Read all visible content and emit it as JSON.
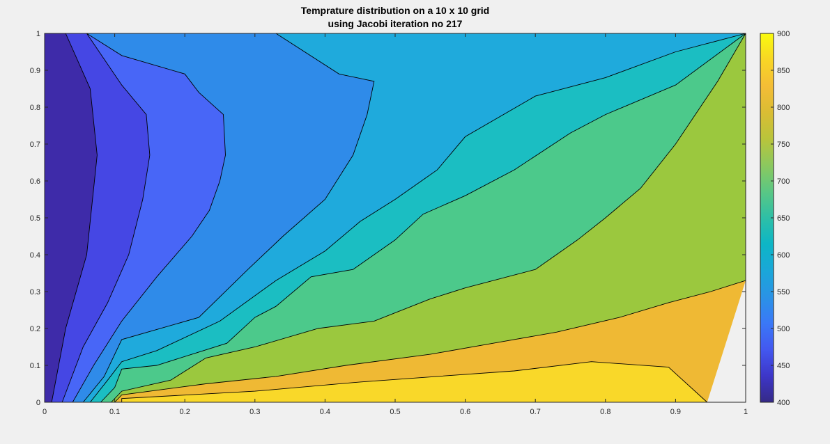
{
  "figure": {
    "title_line1": "Temprature distribution on a 10 x 10  grid",
    "title_line2": "using Jacobi iteration no 217"
  },
  "chart_data": {
    "type": "contourf",
    "title": "Temprature distribution on a 10 x 10  grid\nusing Jacobi iteration no 217",
    "xlabel": "",
    "ylabel": "",
    "xlim": [
      0,
      1
    ],
    "ylim": [
      0,
      1
    ],
    "xticks": [
      0,
      0.1,
      0.2,
      0.3,
      0.4,
      0.5,
      0.6,
      0.7,
      0.8,
      0.9,
      1
    ],
    "xtick_labels": [
      "0",
      "0.1",
      "0.2",
      "0.3",
      "0.4",
      "0.5",
      "0.6",
      "0.7",
      "0.8",
      "0.9",
      "1"
    ],
    "yticks": [
      0,
      0.1,
      0.2,
      0.3,
      0.4,
      0.5,
      0.6,
      0.7,
      0.8,
      0.9,
      1
    ],
    "ytick_labels": [
      "0",
      "0.1",
      "0.2",
      "0.3",
      "0.4",
      "0.5",
      "0.6",
      "0.7",
      "0.8",
      "0.9",
      "1"
    ],
    "grid": false,
    "colormap": "parula",
    "colorbar": {
      "range": [
        400,
        900
      ],
      "ticks": [
        400,
        450,
        500,
        550,
        600,
        650,
        700,
        750,
        800,
        850,
        900
      ],
      "tick_labels": [
        "400",
        "450",
        "500",
        "550",
        "600",
        "650",
        "700",
        "750",
        "800",
        "850",
        "900"
      ],
      "location": "right"
    },
    "levels": [
      400,
      450,
      500,
      550,
      600,
      650,
      700,
      750,
      800,
      850
    ],
    "level_colors": [
      "#3e2ba9",
      "#4547e4",
      "#4866f7",
      "#2f8be9",
      "#1faadc",
      "#1bbec2",
      "#4cc98b",
      "#9bc83e",
      "#efb934",
      "#f9d829"
    ],
    "contour_lines": [
      {
        "level": 450,
        "points": [
          [
            0.01,
            0
          ],
          [
            0.03,
            0.2
          ],
          [
            0.06,
            0.4
          ],
          [
            0.075,
            0.67
          ],
          [
            0.065,
            0.85
          ],
          [
            0.03,
            1
          ]
        ]
      },
      {
        "level": 500,
        "points": [
          [
            0.025,
            0
          ],
          [
            0.055,
            0.15
          ],
          [
            0.09,
            0.27
          ],
          [
            0.12,
            0.4
          ],
          [
            0.14,
            0.55
          ],
          [
            0.15,
            0.67
          ],
          [
            0.145,
            0.78
          ],
          [
            0.11,
            0.86
          ],
          [
            0.06,
            1
          ]
        ]
      },
      {
        "level": 550,
        "points": [
          [
            0.04,
            0
          ],
          [
            0.07,
            0.1
          ],
          [
            0.11,
            0.22
          ],
          [
            0.16,
            0.34
          ],
          [
            0.21,
            0.45
          ],
          [
            0.235,
            0.52
          ],
          [
            0.25,
            0.6
          ],
          [
            0.258,
            0.67
          ],
          [
            0.255,
            0.78
          ],
          [
            0.22,
            0.84
          ],
          [
            0.2,
            0.89
          ],
          [
            0.11,
            0.94
          ],
          [
            0.06,
            1
          ]
        ]
      },
      {
        "level": 600,
        "points": [
          [
            0.055,
            0
          ],
          [
            0.085,
            0.07
          ],
          [
            0.11,
            0.17
          ],
          [
            0.22,
            0.23
          ],
          [
            0.29,
            0.36
          ],
          [
            0.34,
            0.45
          ],
          [
            0.4,
            0.55
          ],
          [
            0.44,
            0.67
          ],
          [
            0.46,
            0.78
          ],
          [
            0.47,
            0.87
          ],
          [
            0.42,
            0.89
          ],
          [
            0.33,
            1
          ]
        ]
      },
      {
        "level": 650,
        "points": [
          [
            0.065,
            0
          ],
          [
            0.09,
            0.06
          ],
          [
            0.11,
            0.11
          ],
          [
            0.16,
            0.14
          ],
          [
            0.25,
            0.22
          ],
          [
            0.33,
            0.33
          ],
          [
            0.4,
            0.41
          ],
          [
            0.45,
            0.49
          ],
          [
            0.5,
            0.55
          ],
          [
            0.56,
            0.63
          ],
          [
            0.6,
            0.72
          ],
          [
            0.7,
            0.83
          ],
          [
            0.8,
            0.88
          ],
          [
            0.9,
            0.95
          ],
          [
            1,
            1
          ]
        ]
      },
      {
        "level": 700,
        "points": [
          [
            0.08,
            0
          ],
          [
            0.1,
            0.04
          ],
          [
            0.11,
            0.09
          ],
          [
            0.16,
            0.1
          ],
          [
            0.26,
            0.16
          ],
          [
            0.3,
            0.23
          ],
          [
            0.33,
            0.26
          ],
          [
            0.38,
            0.34
          ],
          [
            0.44,
            0.36
          ],
          [
            0.5,
            0.44
          ],
          [
            0.54,
            0.51
          ],
          [
            0.6,
            0.56
          ],
          [
            0.67,
            0.63
          ],
          [
            0.75,
            0.73
          ],
          [
            0.8,
            0.78
          ],
          [
            0.9,
            0.86
          ],
          [
            1,
            1
          ]
        ]
      },
      {
        "level": 750,
        "points": [
          [
            0.095,
            0
          ],
          [
            0.11,
            0.03
          ],
          [
            0.18,
            0.06
          ],
          [
            0.23,
            0.12
          ],
          [
            0.3,
            0.15
          ],
          [
            0.39,
            0.2
          ],
          [
            0.47,
            0.22
          ],
          [
            0.55,
            0.28
          ],
          [
            0.6,
            0.31
          ],
          [
            0.7,
            0.36
          ],
          [
            0.76,
            0.44
          ],
          [
            0.8,
            0.5
          ],
          [
            0.85,
            0.58
          ],
          [
            0.9,
            0.7
          ],
          [
            0.96,
            0.87
          ],
          [
            1,
            1
          ]
        ]
      },
      {
        "level": 800,
        "points": [
          [
            0.1,
            0
          ],
          [
            0.11,
            0.02
          ],
          [
            0.23,
            0.05
          ],
          [
            0.33,
            0.07
          ],
          [
            0.43,
            0.1
          ],
          [
            0.55,
            0.13
          ],
          [
            0.64,
            0.16
          ],
          [
            0.73,
            0.19
          ],
          [
            0.82,
            0.23
          ],
          [
            0.89,
            0.27
          ],
          [
            0.95,
            0.3
          ],
          [
            1,
            0.33
          ]
        ]
      },
      {
        "level": 850,
        "points": [
          [
            0.11,
            0
          ],
          [
            0.11,
            0.01
          ],
          [
            0.3,
            0.03
          ],
          [
            0.45,
            0.055
          ],
          [
            0.56,
            0.07
          ],
          [
            0.67,
            0.085
          ],
          [
            0.78,
            0.11
          ],
          [
            0.89,
            0.095
          ],
          [
            0.945,
            0
          ]
        ]
      }
    ]
  }
}
